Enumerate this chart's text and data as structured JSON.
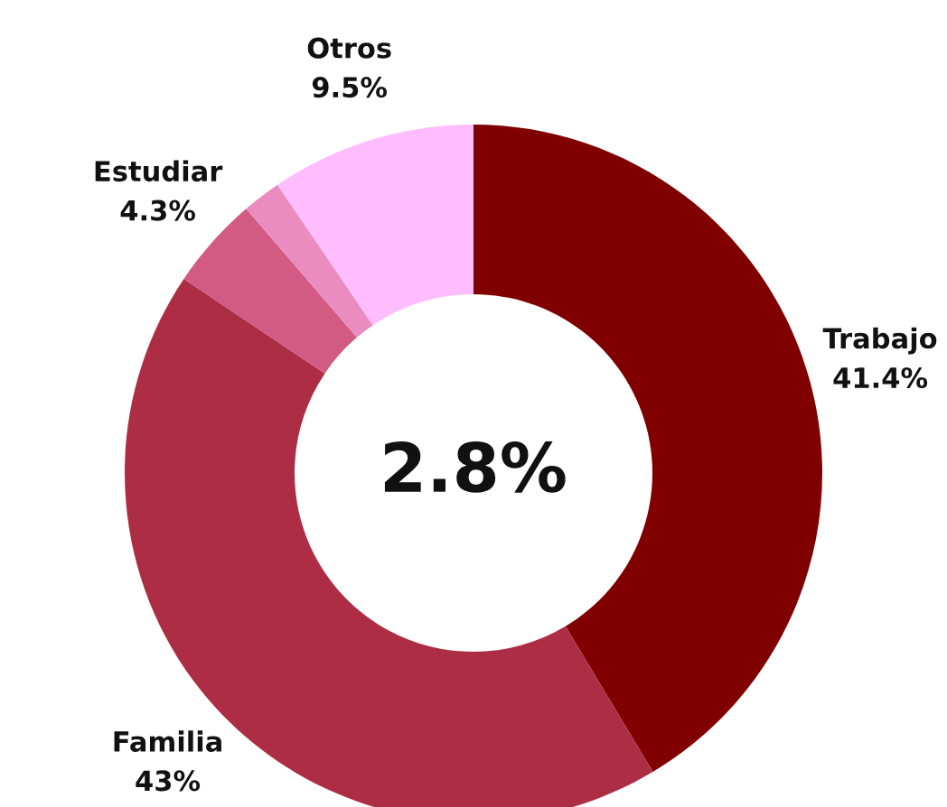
{
  "chart_data": {
    "type": "donut",
    "categories": [
      "Trabajo",
      "Familia",
      "Estudiar",
      null,
      "Otros"
    ],
    "values": [
      41.4,
      43,
      4.3,
      1.8,
      9.5
    ],
    "colors": [
      "#800000",
      "#ad2d44",
      "#d15b82",
      "#eb8cc0",
      "#ffbdff"
    ],
    "value_labels": [
      "41.4%",
      "43%",
      "4.3%",
      null,
      "9.5%"
    ],
    "annotations": [
      "2.8%"
    ]
  }
}
